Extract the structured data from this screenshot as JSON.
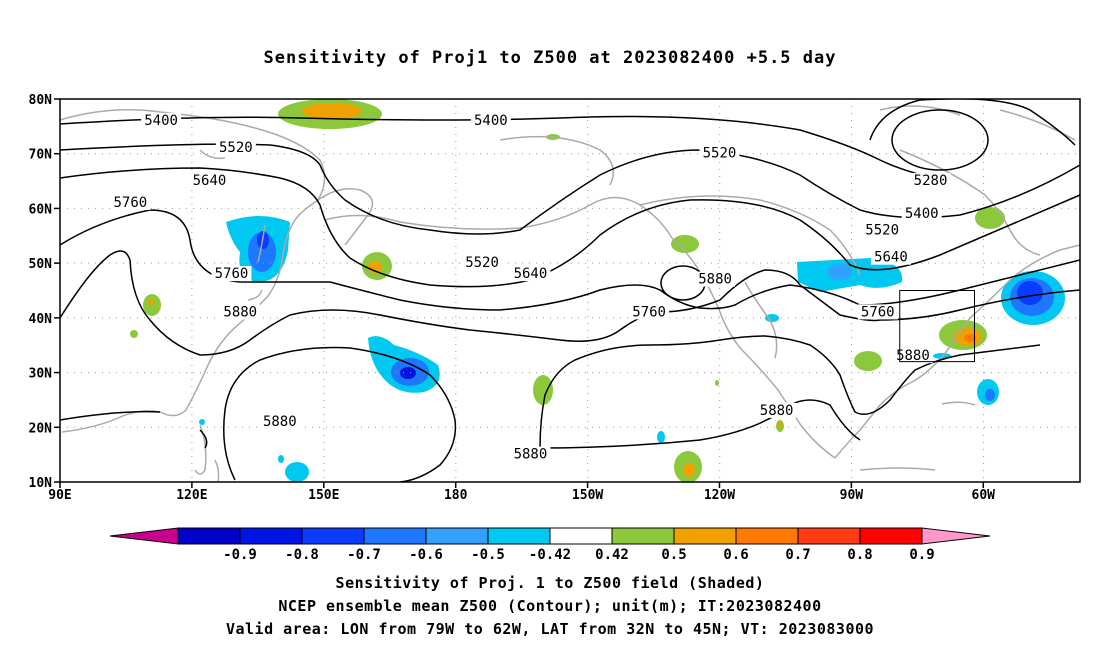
{
  "title": "Sensitivity of Proj1 to Z500 at 2023082400 +5.5 day",
  "map": {
    "lat_labels": [
      "80N",
      "70N",
      "60N",
      "50N",
      "40N",
      "30N",
      "20N",
      "10N"
    ],
    "lon_labels": [
      "90E",
      "120E",
      "150E",
      "180",
      "150W",
      "120W",
      "90W",
      "60W"
    ],
    "contour_labels": [
      {
        "text": "5400",
        "lon": 113,
        "lat": 76
      },
      {
        "text": "5400",
        "lon": 188,
        "lat": 76
      },
      {
        "text": "5520",
        "lon": 130,
        "lat": 71
      },
      {
        "text": "5520",
        "lon": 240,
        "lat": 70
      },
      {
        "text": "5640",
        "lon": 124,
        "lat": 65
      },
      {
        "text": "5760",
        "lon": 106,
        "lat": 61
      },
      {
        "text": "5280",
        "lon": 288,
        "lat": 65
      },
      {
        "text": "5400",
        "lon": 286,
        "lat": 59
      },
      {
        "text": "5520",
        "lon": 277,
        "lat": 56
      },
      {
        "text": "5640",
        "lon": 279,
        "lat": 51
      },
      {
        "text": "5520",
        "lon": 186,
        "lat": 50
      },
      {
        "text": "5640",
        "lon": 197,
        "lat": 48
      },
      {
        "text": "5760",
        "lon": 129,
        "lat": 48
      },
      {
        "text": "5880",
        "lon": 239,
        "lat": 47
      },
      {
        "text": "5760",
        "lon": 224,
        "lat": 41
      },
      {
        "text": "5760",
        "lon": 276,
        "lat": 41
      },
      {
        "text": "5880",
        "lon": 131,
        "lat": 41
      },
      {
        "text": "5880",
        "lon": 284,
        "lat": 33
      },
      {
        "text": "5880",
        "lon": 140,
        "lat": 21
      },
      {
        "text": "5880",
        "lon": 197,
        "lat": 15
      },
      {
        "text": "5880",
        "lon": 253,
        "lat": 23
      }
    ],
    "valid_box": {
      "lon_west": -79,
      "lon_east": -62,
      "lat_south": 32,
      "lat_north": 45
    }
  },
  "colorbar": {
    "tick_labels": [
      "-0.9",
      "-0.8",
      "-0.7",
      "-0.6",
      "-0.5",
      "-0.42",
      "0.42",
      "0.5",
      "0.6",
      "0.7",
      "0.8",
      "0.9"
    ],
    "colors": [
      "#c8008c",
      "#0000c8",
      "#0014e6",
      "#0a3cff",
      "#1e78ff",
      "#32a0ff",
      "#00c8f0",
      "#ffffff",
      "#8cc83c",
      "#f0a000",
      "#ff7800",
      "#ff3c14",
      "#ff0000",
      "#ff99cc"
    ]
  },
  "caption": {
    "line1": "Sensitivity of Proj. 1 to Z500 field (Shaded)",
    "line2": "NCEP ensemble mean Z500 (Contour); unit(m); IT:2023082400",
    "line3": "Valid area: LON from 79W to 62W, LAT from 32N to 45N; VT: 2023083000"
  }
}
